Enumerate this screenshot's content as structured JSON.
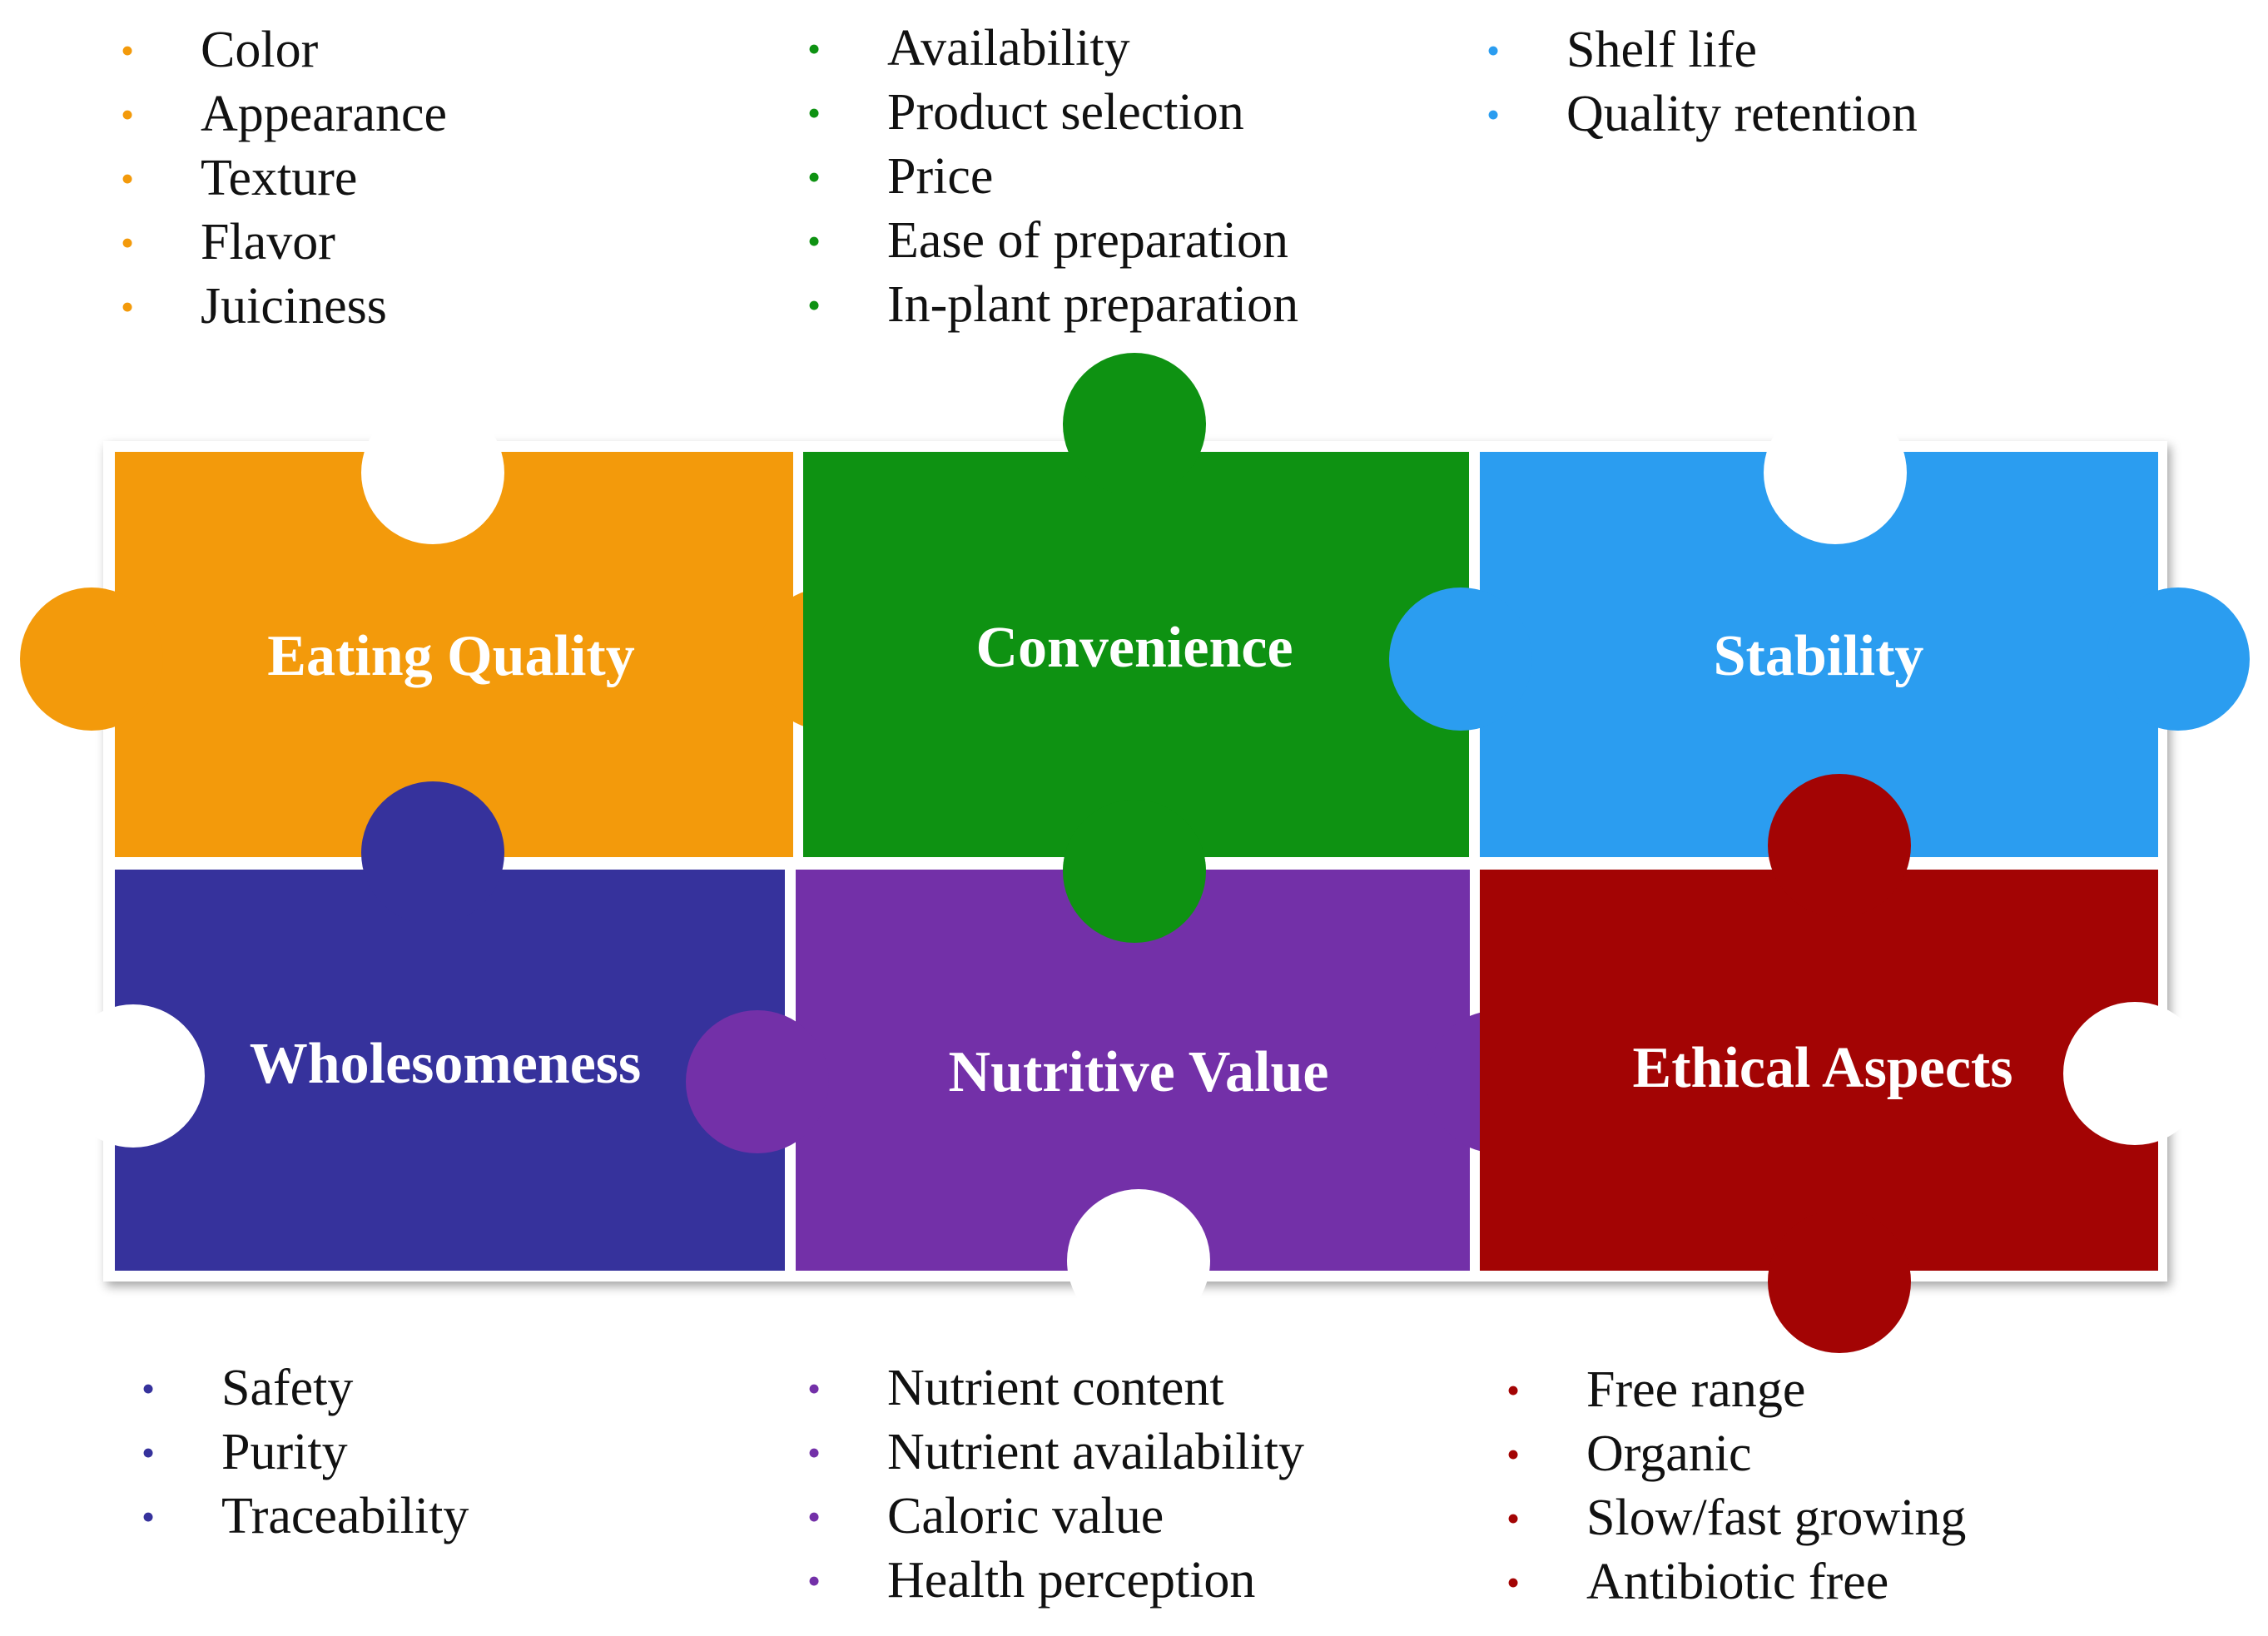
{
  "colors": {
    "eating_quality": "#f39a0b",
    "convenience": "#0e9212",
    "stability": "#2b9df0",
    "wholesomeness": "#36329c",
    "nutritive_value": "#7330a8",
    "ethical_aspects": "#a30404"
  },
  "pieces": {
    "eating_quality": "Eating Quality",
    "convenience": "Convenience",
    "stability": "Stability",
    "wholesomeness": "Wholesomeness",
    "nutritive_value": "Nutritive Value",
    "ethical_aspects": "Ethical Aspects"
  },
  "lists": {
    "eating_quality": [
      "Color",
      "Appearance",
      "Texture",
      "Flavor",
      "Juiciness"
    ],
    "convenience": [
      "Availability",
      "Product selection",
      "Price",
      "Ease of preparation",
      "In-plant preparation"
    ],
    "stability": [
      "Shelf life",
      "Quality retention"
    ],
    "wholesomeness": [
      "Safety",
      "Purity",
      "Traceability"
    ],
    "nutritive_value": [
      "Nutrient content",
      "Nutrient availability",
      "Caloric  value",
      "Health perception"
    ],
    "ethical_aspects": [
      "Free range",
      "Organic",
      "Slow/fast growing",
      "Antibiotic free"
    ]
  },
  "bullet_glyph": "•"
}
